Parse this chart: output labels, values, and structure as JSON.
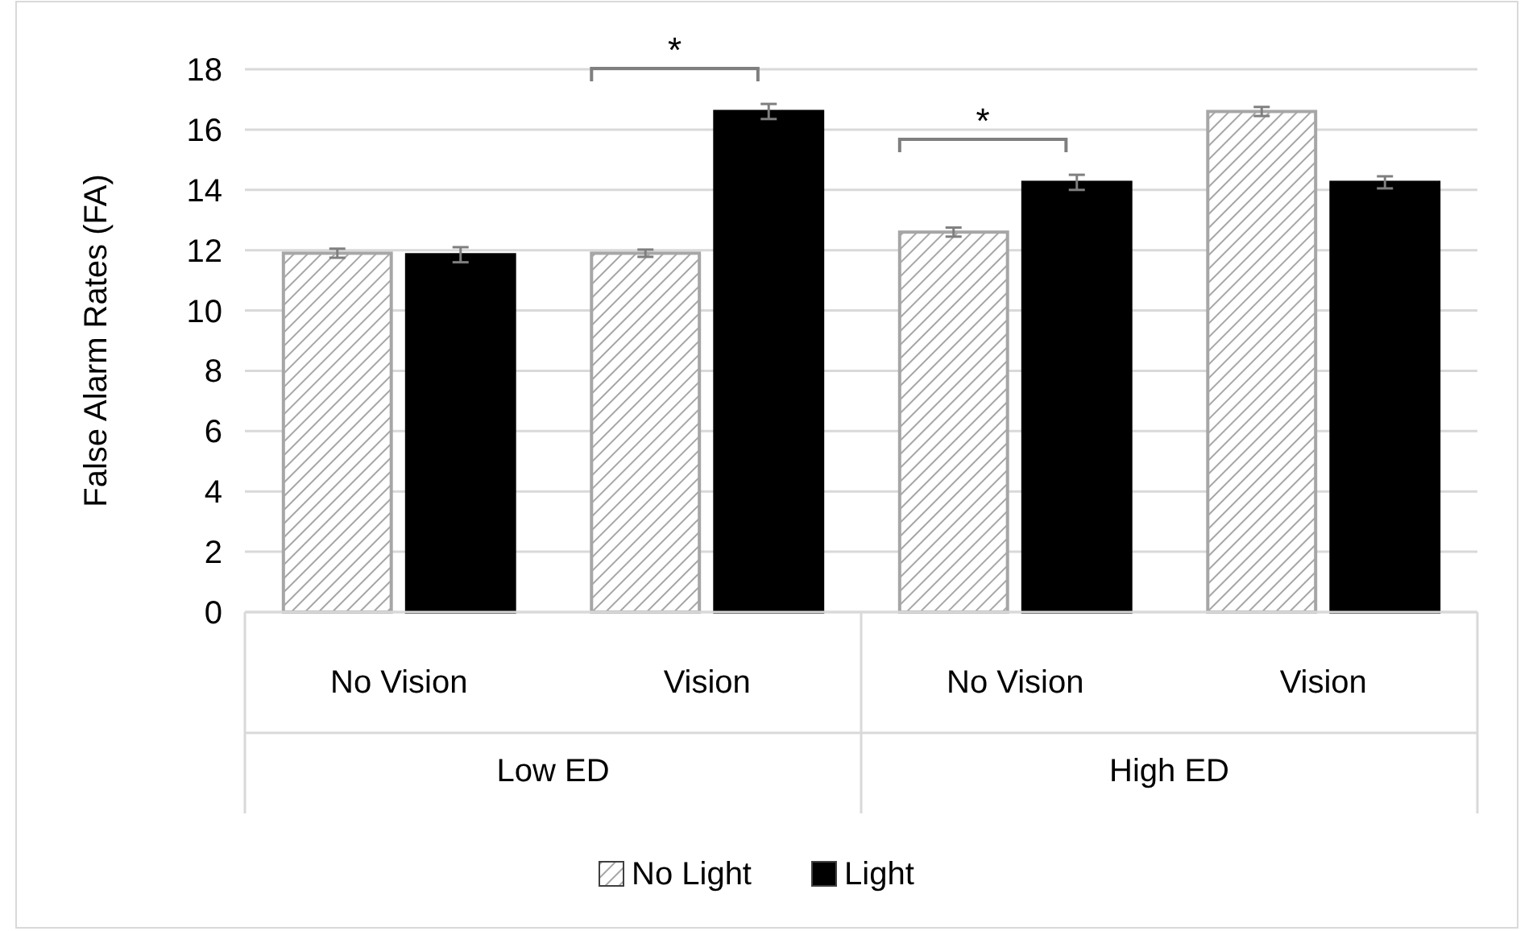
{
  "chart_data": {
    "type": "bar",
    "ylabel": "False Alarm Rates (FA)",
    "categories": [
      "No Vision",
      "Vision",
      "No Vision",
      "Vision"
    ],
    "series": [
      {
        "name": "No Light",
        "color": "#a6a6a6",
        "values": [
          11.9,
          11.9,
          12.6,
          16.6
        ],
        "errors": [
          0.15,
          0.12,
          0.15,
          0.15
        ]
      },
      {
        "name": "Light",
        "color": "#000000",
        "values": [
          11.85,
          16.6,
          14.25,
          14.25
        ],
        "errors": [
          0.25,
          0.25,
          0.25,
          0.2
        ]
      }
    ],
    "ylim": [
      0,
      18
    ],
    "yticks": [
      0,
      2,
      4,
      6,
      8,
      10,
      12,
      14,
      16,
      18
    ],
    "grid": "y",
    "legend": "bottom",
    "annotations": [
      "Low ED",
      "High ED",
      "*",
      "*"
    ]
  }
}
